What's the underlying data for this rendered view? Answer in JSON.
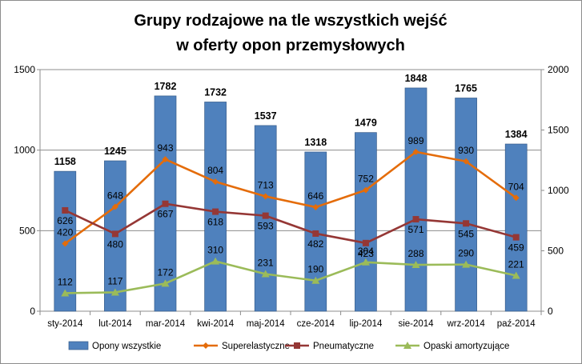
{
  "chart_data": {
    "type": "bar",
    "title_lines": [
      "Grupy rodzajowe na tle wszystkich wejść",
      "w oferty opon przemysłowych"
    ],
    "categories": [
      "sty-2014",
      "lut-2014",
      "mar-2014",
      "kwi-2014",
      "maj-2014",
      "cze-2014",
      "lip-2014",
      "sie-2014",
      "wrz-2014",
      "paź-2014"
    ],
    "y_left": {
      "lim": [
        0,
        1500
      ],
      "ticks": [
        "0",
        "500",
        "1000",
        "1500"
      ]
    },
    "y_right": {
      "lim": [
        0,
        2000
      ],
      "ticks": [
        "0",
        "500",
        "1000",
        "1500",
        "2000"
      ]
    },
    "grid": true,
    "legend_position": "bottom",
    "series": [
      {
        "name": "Opony  wszystkie",
        "type": "bar",
        "axis": "right",
        "color": "#4f81bd",
        "values": [
          1158,
          1245,
          1782,
          1732,
          1537,
          1318,
          1479,
          1848,
          1765,
          1384
        ]
      },
      {
        "name": "Superelastyczne",
        "type": "line",
        "axis": "left",
        "color": "#e46c0a",
        "marker": "diamond",
        "values": [
          420,
          648,
          943,
          804,
          713,
          646,
          752,
          989,
          930,
          704
        ]
      },
      {
        "name": "Pneumatyczne",
        "type": "line",
        "axis": "left",
        "color": "#953735",
        "marker": "square",
        "values": [
          626,
          480,
          667,
          618,
          593,
          482,
          423,
          571,
          545,
          459
        ]
      },
      {
        "name": "Opaski amortyzujące",
        "type": "line",
        "axis": "left",
        "color": "#9bbb59",
        "marker": "triangle",
        "values": [
          112,
          117,
          172,
          310,
          231,
          190,
          304,
          288,
          290,
          221
        ]
      }
    ]
  }
}
